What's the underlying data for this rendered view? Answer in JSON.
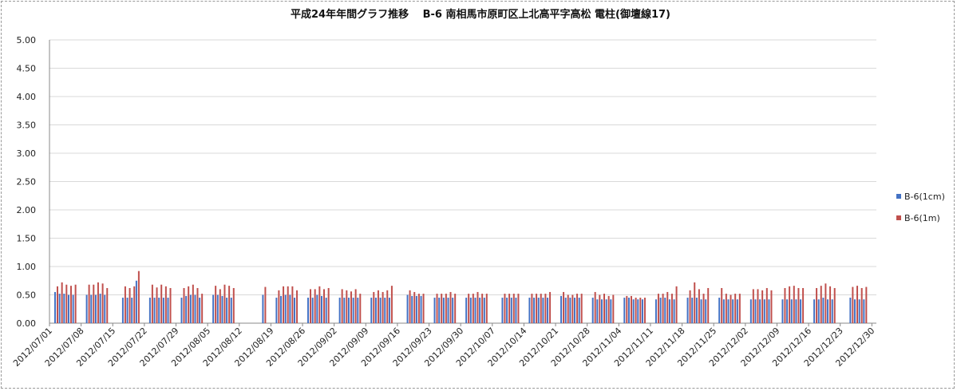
{
  "colors": {
    "series_1cm": "#4472C4",
    "series_1m": "#C0504D",
    "grid": "#d9d9d9",
    "axis": "#888888"
  },
  "chart_data": {
    "type": "bar",
    "title": "平成24年年間グラフ推移　 B-6 南相馬市原町区上北高平字高松 電柱(御壇線17)",
    "xlabel": "",
    "ylabel": "",
    "ylim": [
      0,
      5
    ],
    "yticks": [
      "0.00",
      "0.50",
      "1.00",
      "1.50",
      "2.00",
      "2.50",
      "3.00",
      "3.50",
      "4.00",
      "4.50",
      "5.00"
    ],
    "x_start": "2012/07/01",
    "x_end": "2012/12/31",
    "xtick_labels": [
      "2012/07/01",
      "2012/07/08",
      "2012/07/15",
      "2012/07/22",
      "2012/07/29",
      "2012/08/05",
      "2012/08/12",
      "2012/08/19",
      "2012/08/26",
      "2012/09/02",
      "2012/09/09",
      "2012/09/16",
      "2012/09/23",
      "2012/09/30",
      "2012/10/07",
      "2012/10/14",
      "2012/10/21",
      "2012/10/28",
      "2012/11/04",
      "2012/11/11",
      "2012/11/18",
      "2012/11/25",
      "2012/12/02",
      "2012/12/09",
      "2012/12/16",
      "2012/12/23",
      "2012/12/30"
    ],
    "grid": true,
    "legend_position": "right",
    "series": [
      {
        "name": "B-6(1cm)",
        "color": "#4472C4",
        "points": [
          [
            "2012/07/02",
            0.55
          ],
          [
            "2012/07/03",
            0.52
          ],
          [
            "2012/07/04",
            0.52
          ],
          [
            "2012/07/05",
            0.5
          ],
          [
            "2012/07/06",
            0.5
          ],
          [
            "2012/07/09",
            0.5
          ],
          [
            "2012/07/10",
            0.5
          ],
          [
            "2012/07/11",
            0.5
          ],
          [
            "2012/07/12",
            0.52
          ],
          [
            "2012/07/13",
            0.5
          ],
          [
            "2012/07/17",
            0.45
          ],
          [
            "2012/07/18",
            0.45
          ],
          [
            "2012/07/19",
            0.45
          ],
          [
            "2012/07/20",
            0.75
          ],
          [
            "2012/07/23",
            0.45
          ],
          [
            "2012/07/24",
            0.45
          ],
          [
            "2012/07/25",
            0.45
          ],
          [
            "2012/07/26",
            0.45
          ],
          [
            "2012/07/27",
            0.45
          ],
          [
            "2012/07/30",
            0.45
          ],
          [
            "2012/07/31",
            0.48
          ],
          [
            "2012/08/01",
            0.5
          ],
          [
            "2012/08/02",
            0.5
          ],
          [
            "2012/08/03",
            0.45
          ],
          [
            "2012/08/06",
            0.5
          ],
          [
            "2012/08/07",
            0.5
          ],
          [
            "2012/08/08",
            0.48
          ],
          [
            "2012/08/09",
            0.45
          ],
          [
            "2012/08/10",
            0.45
          ],
          [
            "2012/08/17",
            0.5
          ],
          [
            "2012/08/20",
            0.45
          ],
          [
            "2012/08/21",
            0.48
          ],
          [
            "2012/08/22",
            0.5
          ],
          [
            "2012/08/23",
            0.5
          ],
          [
            "2012/08/24",
            0.45
          ],
          [
            "2012/08/27",
            0.45
          ],
          [
            "2012/08/28",
            0.45
          ],
          [
            "2012/08/29",
            0.5
          ],
          [
            "2012/08/30",
            0.48
          ],
          [
            "2012/08/31",
            0.45
          ],
          [
            "2012/09/03",
            0.45
          ],
          [
            "2012/09/04",
            0.45
          ],
          [
            "2012/09/05",
            0.45
          ],
          [
            "2012/09/06",
            0.45
          ],
          [
            "2012/09/07",
            0.45
          ],
          [
            "2012/09/10",
            0.45
          ],
          [
            "2012/09/11",
            0.45
          ],
          [
            "2012/09/12",
            0.45
          ],
          [
            "2012/09/13",
            0.45
          ],
          [
            "2012/09/14",
            0.45
          ],
          [
            "2012/09/18",
            0.5
          ],
          [
            "2012/09/19",
            0.48
          ],
          [
            "2012/09/20",
            0.48
          ],
          [
            "2012/09/21",
            0.48
          ],
          [
            "2012/09/24",
            0.45
          ],
          [
            "2012/09/25",
            0.45
          ],
          [
            "2012/09/26",
            0.45
          ],
          [
            "2012/09/27",
            0.45
          ],
          [
            "2012/09/28",
            0.45
          ],
          [
            "2012/10/01",
            0.45
          ],
          [
            "2012/10/02",
            0.45
          ],
          [
            "2012/10/03",
            0.45
          ],
          [
            "2012/10/04",
            0.45
          ],
          [
            "2012/10/05",
            0.45
          ],
          [
            "2012/10/09",
            0.45
          ],
          [
            "2012/10/10",
            0.45
          ],
          [
            "2012/10/11",
            0.45
          ],
          [
            "2012/10/12",
            0.45
          ],
          [
            "2012/10/15",
            0.45
          ],
          [
            "2012/10/16",
            0.45
          ],
          [
            "2012/10/17",
            0.45
          ],
          [
            "2012/10/18",
            0.45
          ],
          [
            "2012/10/19",
            0.45
          ],
          [
            "2012/10/22",
            0.48
          ],
          [
            "2012/10/23",
            0.45
          ],
          [
            "2012/10/24",
            0.45
          ],
          [
            "2012/10/25",
            0.45
          ],
          [
            "2012/10/26",
            0.45
          ],
          [
            "2012/10/29",
            0.45
          ],
          [
            "2012/10/30",
            0.42
          ],
          [
            "2012/10/31",
            0.42
          ],
          [
            "2012/11/01",
            0.42
          ],
          [
            "2012/11/02",
            0.42
          ],
          [
            "2012/11/05",
            0.45
          ],
          [
            "2012/11/06",
            0.45
          ],
          [
            "2012/11/07",
            0.42
          ],
          [
            "2012/11/08",
            0.42
          ],
          [
            "2012/11/09",
            0.42
          ],
          [
            "2012/11/12",
            0.42
          ],
          [
            "2012/11/13",
            0.45
          ],
          [
            "2012/11/14",
            0.45
          ],
          [
            "2012/11/15",
            0.42
          ],
          [
            "2012/11/16",
            0.42
          ],
          [
            "2012/11/19",
            0.45
          ],
          [
            "2012/11/20",
            0.45
          ],
          [
            "2012/11/21",
            0.45
          ],
          [
            "2012/11/22",
            0.42
          ],
          [
            "2012/11/23",
            0.42
          ],
          [
            "2012/11/26",
            0.45
          ],
          [
            "2012/11/27",
            0.42
          ],
          [
            "2012/11/28",
            0.42
          ],
          [
            "2012/11/29",
            0.42
          ],
          [
            "2012/11/30",
            0.42
          ],
          [
            "2012/12/03",
            0.42
          ],
          [
            "2012/12/04",
            0.42
          ],
          [
            "2012/12/05",
            0.42
          ],
          [
            "2012/12/06",
            0.42
          ],
          [
            "2012/12/07",
            0.42
          ],
          [
            "2012/12/10",
            0.42
          ],
          [
            "2012/12/11",
            0.42
          ],
          [
            "2012/12/12",
            0.42
          ],
          [
            "2012/12/13",
            0.42
          ],
          [
            "2012/12/14",
            0.42
          ],
          [
            "2012/12/17",
            0.42
          ],
          [
            "2012/12/18",
            0.42
          ],
          [
            "2012/12/19",
            0.45
          ],
          [
            "2012/12/20",
            0.42
          ],
          [
            "2012/12/21",
            0.42
          ],
          [
            "2012/12/25",
            0.45
          ],
          [
            "2012/12/26",
            0.42
          ],
          [
            "2012/12/27",
            0.42
          ],
          [
            "2012/12/28",
            0.42
          ]
        ]
      },
      {
        "name": "B-6(1m)",
        "color": "#C0504D",
        "points": [
          [
            "2012/07/02",
            0.65
          ],
          [
            "2012/07/03",
            0.72
          ],
          [
            "2012/07/04",
            0.68
          ],
          [
            "2012/07/05",
            0.66
          ],
          [
            "2012/07/06",
            0.68
          ],
          [
            "2012/07/09",
            0.68
          ],
          [
            "2012/07/10",
            0.68
          ],
          [
            "2012/07/11",
            0.72
          ],
          [
            "2012/07/12",
            0.7
          ],
          [
            "2012/07/13",
            0.62
          ],
          [
            "2012/07/17",
            0.65
          ],
          [
            "2012/07/18",
            0.62
          ],
          [
            "2012/07/19",
            0.65
          ],
          [
            "2012/07/20",
            0.92
          ],
          [
            "2012/07/23",
            0.68
          ],
          [
            "2012/07/24",
            0.63
          ],
          [
            "2012/07/25",
            0.68
          ],
          [
            "2012/07/26",
            0.65
          ],
          [
            "2012/07/27",
            0.62
          ],
          [
            "2012/07/30",
            0.62
          ],
          [
            "2012/07/31",
            0.65
          ],
          [
            "2012/08/01",
            0.68
          ],
          [
            "2012/08/02",
            0.62
          ],
          [
            "2012/08/03",
            0.52
          ],
          [
            "2012/08/06",
            0.66
          ],
          [
            "2012/08/07",
            0.6
          ],
          [
            "2012/08/08",
            0.68
          ],
          [
            "2012/08/09",
            0.66
          ],
          [
            "2012/08/10",
            0.62
          ],
          [
            "2012/08/17",
            0.64
          ],
          [
            "2012/08/20",
            0.58
          ],
          [
            "2012/08/21",
            0.65
          ],
          [
            "2012/08/22",
            0.65
          ],
          [
            "2012/08/23",
            0.65
          ],
          [
            "2012/08/24",
            0.58
          ],
          [
            "2012/08/27",
            0.6
          ],
          [
            "2012/08/28",
            0.6
          ],
          [
            "2012/08/29",
            0.65
          ],
          [
            "2012/08/30",
            0.6
          ],
          [
            "2012/08/31",
            0.62
          ],
          [
            "2012/09/03",
            0.6
          ],
          [
            "2012/09/04",
            0.58
          ],
          [
            "2012/09/05",
            0.56
          ],
          [
            "2012/09/06",
            0.6
          ],
          [
            "2012/09/07",
            0.52
          ],
          [
            "2012/09/10",
            0.55
          ],
          [
            "2012/09/11",
            0.58
          ],
          [
            "2012/09/12",
            0.55
          ],
          [
            "2012/09/13",
            0.58
          ],
          [
            "2012/09/14",
            0.66
          ],
          [
            "2012/09/18",
            0.58
          ],
          [
            "2012/09/19",
            0.55
          ],
          [
            "2012/09/20",
            0.52
          ],
          [
            "2012/09/21",
            0.52
          ],
          [
            "2012/09/24",
            0.52
          ],
          [
            "2012/09/25",
            0.52
          ],
          [
            "2012/09/26",
            0.52
          ],
          [
            "2012/09/27",
            0.55
          ],
          [
            "2012/09/28",
            0.52
          ],
          [
            "2012/10/01",
            0.52
          ],
          [
            "2012/10/02",
            0.52
          ],
          [
            "2012/10/03",
            0.55
          ],
          [
            "2012/10/04",
            0.52
          ],
          [
            "2012/10/05",
            0.52
          ],
          [
            "2012/10/09",
            0.52
          ],
          [
            "2012/10/10",
            0.52
          ],
          [
            "2012/10/11",
            0.52
          ],
          [
            "2012/10/12",
            0.52
          ],
          [
            "2012/10/15",
            0.52
          ],
          [
            "2012/10/16",
            0.52
          ],
          [
            "2012/10/17",
            0.52
          ],
          [
            "2012/10/18",
            0.52
          ],
          [
            "2012/10/19",
            0.55
          ],
          [
            "2012/10/22",
            0.55
          ],
          [
            "2012/10/23",
            0.5
          ],
          [
            "2012/10/24",
            0.5
          ],
          [
            "2012/10/25",
            0.52
          ],
          [
            "2012/10/26",
            0.52
          ],
          [
            "2012/10/29",
            0.55
          ],
          [
            "2012/10/30",
            0.5
          ],
          [
            "2012/10/31",
            0.52
          ],
          [
            "2012/11/01",
            0.48
          ],
          [
            "2012/11/02",
            0.5
          ],
          [
            "2012/11/05",
            0.48
          ],
          [
            "2012/11/06",
            0.48
          ],
          [
            "2012/11/07",
            0.45
          ],
          [
            "2012/11/08",
            0.45
          ],
          [
            "2012/11/09",
            0.45
          ],
          [
            "2012/11/12",
            0.52
          ],
          [
            "2012/11/13",
            0.52
          ],
          [
            "2012/11/14",
            0.55
          ],
          [
            "2012/11/15",
            0.52
          ],
          [
            "2012/11/16",
            0.65
          ],
          [
            "2012/11/19",
            0.58
          ],
          [
            "2012/11/20",
            0.72
          ],
          [
            "2012/11/21",
            0.6
          ],
          [
            "2012/11/22",
            0.52
          ],
          [
            "2012/11/23",
            0.62
          ],
          [
            "2012/11/26",
            0.62
          ],
          [
            "2012/11/27",
            0.52
          ],
          [
            "2012/11/28",
            0.5
          ],
          [
            "2012/11/29",
            0.52
          ],
          [
            "2012/11/30",
            0.52
          ],
          [
            "2012/12/03",
            0.6
          ],
          [
            "2012/12/04",
            0.6
          ],
          [
            "2012/12/05",
            0.58
          ],
          [
            "2012/12/06",
            0.62
          ],
          [
            "2012/12/07",
            0.58
          ],
          [
            "2012/12/10",
            0.62
          ],
          [
            "2012/12/11",
            0.65
          ],
          [
            "2012/12/12",
            0.66
          ],
          [
            "2012/12/13",
            0.62
          ],
          [
            "2012/12/14",
            0.62
          ],
          [
            "2012/12/17",
            0.62
          ],
          [
            "2012/12/18",
            0.66
          ],
          [
            "2012/12/19",
            0.7
          ],
          [
            "2012/12/20",
            0.65
          ],
          [
            "2012/12/21",
            0.62
          ],
          [
            "2012/12/25",
            0.64
          ],
          [
            "2012/12/26",
            0.66
          ],
          [
            "2012/12/27",
            0.62
          ],
          [
            "2012/12/28",
            0.64
          ]
        ]
      }
    ]
  }
}
